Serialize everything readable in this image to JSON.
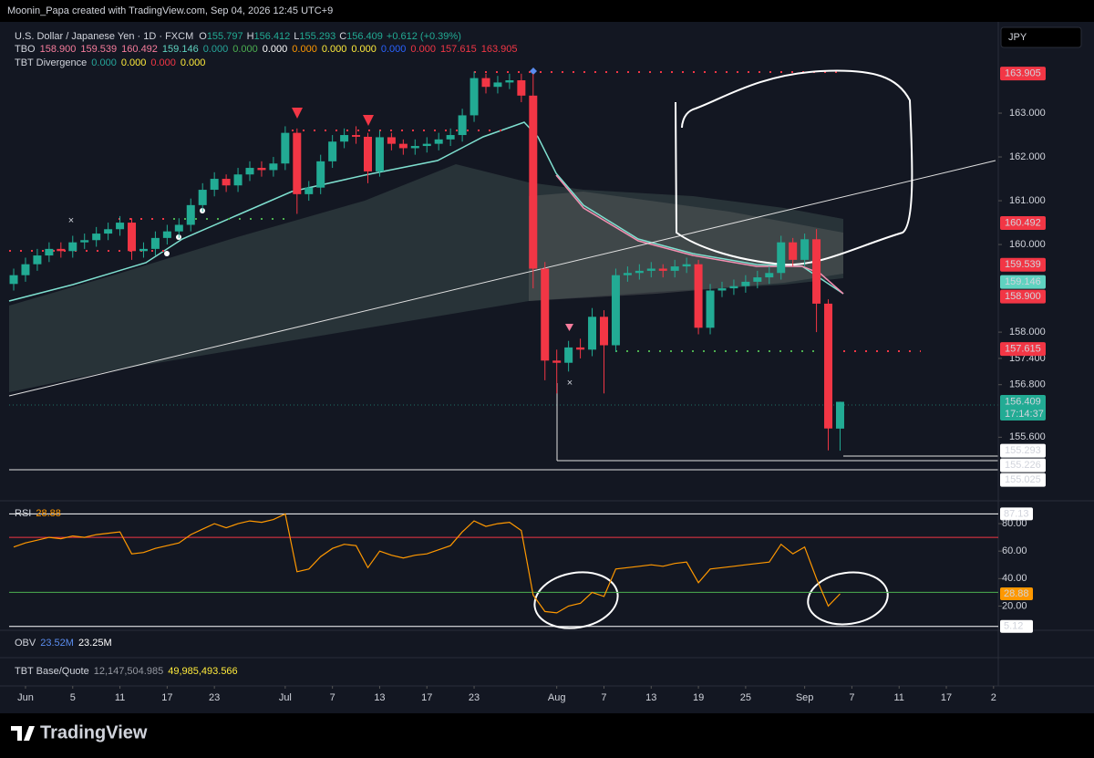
{
  "caption": "Moonin_Papa created with TradingView.com, Sep 04, 2026 12:45 UTC+9",
  "legend": {
    "symbol": "U.S. Dollar / Japanese Yen · 1D · FXCM",
    "ohlc": [
      {
        "key": "O",
        "value": "155.797"
      },
      {
        "key": "H",
        "value": "156.412"
      },
      {
        "key": "L",
        "value": "155.293"
      },
      {
        "key": "C",
        "value": "156.409"
      }
    ],
    "change": "+0.612 (+0.39%)",
    "tbo": {
      "name": "TBO",
      "values": [
        {
          "text": "158.900",
          "color": "#f77c9c"
        },
        {
          "text": "159.539",
          "color": "#f77c9c"
        },
        {
          "text": "160.492",
          "color": "#f77c9c"
        },
        {
          "text": "159.146",
          "color": "#5fd3c0"
        },
        {
          "text": "0.000",
          "color": "#26a69a"
        },
        {
          "text": "0.000",
          "color": "#4caf50"
        },
        {
          "text": "0.000",
          "color": "#ffffff"
        },
        {
          "text": "0.000",
          "color": "#ff9800"
        },
        {
          "text": "0.000",
          "color": "#ffeb3b"
        },
        {
          "text": "0.000",
          "color": "#ffeb3b"
        },
        {
          "text": "0.000",
          "color": "#2962ff"
        },
        {
          "text": "0.000",
          "color": "#f23645"
        },
        {
          "text": "157.615",
          "color": "#f23645"
        },
        {
          "text": "163.905",
          "color": "#f23645"
        }
      ]
    },
    "divergence": {
      "name": "TBT Divergence",
      "values": [
        {
          "text": "0.000",
          "color": "#26a69a"
        },
        {
          "text": "0.000",
          "color": "#ffeb3b"
        },
        {
          "text": "0.000",
          "color": "#f23645"
        },
        {
          "text": "0.000",
          "color": "#ffeb3b"
        }
      ]
    }
  },
  "currency": "JPY",
  "chart_data": [
    {
      "type": "candlestick",
      "up_color": "#22ab94",
      "down_color": "#f23645",
      "xlim": [
        -1.16,
        83.4
      ],
      "xticks": [
        {
          "value": 1,
          "label": "Jun"
        },
        {
          "value": 5,
          "label": "5"
        },
        {
          "value": 9,
          "label": "11"
        },
        {
          "value": 13,
          "label": "17"
        },
        {
          "value": 17,
          "label": "23"
        },
        {
          "value": 23,
          "label": "Jul"
        },
        {
          "value": 27,
          "label": "7"
        },
        {
          "value": 31,
          "label": "13"
        },
        {
          "value": 35,
          "label": "17"
        },
        {
          "value": 39,
          "label": "23"
        },
        {
          "value": 46,
          "label": "Aug"
        },
        {
          "value": 50,
          "label": "7"
        },
        {
          "value": 54,
          "label": "13"
        },
        {
          "value": 58,
          "label": "19"
        },
        {
          "value": 62,
          "label": "25"
        },
        {
          "value": 67,
          "label": "Sep"
        },
        {
          "value": 71,
          "label": "7"
        },
        {
          "value": 75,
          "label": "11"
        },
        {
          "value": 79,
          "label": "17"
        },
        {
          "value": 83,
          "label": "2"
        }
      ],
      "ylim": [
        154.17,
        165.0
      ],
      "yticks": [
        {
          "value": 163,
          "label": "163.000"
        },
        {
          "value": 162,
          "label": "162.000"
        },
        {
          "value": 161,
          "label": "161.000"
        },
        {
          "value": 160,
          "label": "160.000"
        },
        {
          "value": 158,
          "label": "158.000"
        },
        {
          "value": 157.4,
          "label": "157.400"
        },
        {
          "value": 156.8,
          "label": "156.800"
        },
        {
          "value": 155.6,
          "label": "155.600"
        }
      ],
      "open": [
        159.1,
        159.3,
        159.55,
        159.75,
        159.9,
        159.85,
        160.05,
        160.1,
        160.25,
        160.35,
        160.5,
        159.85,
        159.9,
        160.15,
        160.3,
        160.45,
        160.9,
        161.25,
        161.5,
        161.35,
        161.6,
        161.75,
        161.7,
        161.85,
        162.55,
        161.15,
        161.3,
        161.9,
        162.35,
        162.5,
        162.46,
        161.67,
        162.45,
        162.3,
        162.2,
        162.25,
        162.3,
        162.4,
        162.5,
        162.95,
        163.8,
        163.6,
        163.7,
        163.75,
        163.4,
        159.45,
        157.35,
        157.3,
        157.65,
        157.6,
        158.35,
        157.7,
        159.3,
        159.35,
        159.4,
        159.45,
        159.4,
        159.5,
        159.55,
        158.1,
        158.95,
        159.0,
        159.05,
        159.15,
        159.25,
        159.35,
        160.05,
        159.65,
        160.12,
        158.65,
        155.797
      ],
      "high": [
        159.45,
        159.7,
        159.9,
        160.05,
        160.05,
        160.2,
        160.25,
        160.4,
        160.5,
        160.65,
        160.6,
        160.05,
        160.3,
        160.45,
        160.6,
        161.05,
        161.4,
        161.65,
        161.6,
        161.75,
        161.9,
        161.9,
        162.0,
        162.7,
        162.65,
        161.45,
        162.05,
        162.5,
        162.65,
        162.7,
        162.55,
        162.6,
        162.55,
        162.4,
        162.4,
        162.45,
        162.55,
        162.65,
        163.1,
        163.95,
        163.9,
        163.85,
        163.9,
        163.9,
        163.9,
        159.6,
        157.6,
        157.8,
        157.85,
        158.55,
        158.5,
        159.45,
        159.5,
        159.55,
        159.6,
        159.55,
        159.65,
        159.7,
        159.65,
        159.1,
        159.15,
        159.2,
        159.3,
        159.4,
        159.5,
        160.2,
        160.15,
        160.25,
        160.35,
        158.75,
        156.412
      ],
      "low": [
        158.95,
        159.15,
        159.4,
        159.6,
        159.7,
        159.7,
        159.9,
        159.95,
        160.1,
        160.2,
        159.65,
        159.7,
        159.75,
        160.0,
        160.15,
        160.3,
        160.75,
        161.1,
        161.2,
        161.2,
        161.45,
        161.55,
        161.55,
        161.7,
        160.7,
        161.0,
        161.15,
        161.75,
        162.2,
        162.3,
        161.4,
        161.55,
        162.15,
        162.05,
        162.05,
        162.1,
        162.15,
        162.25,
        162.35,
        162.8,
        163.45,
        163.45,
        163.55,
        163.25,
        159.0,
        156.9,
        156.6,
        157.1,
        157.4,
        157.45,
        156.6,
        157.55,
        159.15,
        159.2,
        159.25,
        159.25,
        159.25,
        159.35,
        157.95,
        157.95,
        158.8,
        158.85,
        158.9,
        159.0,
        159.1,
        159.2,
        159.5,
        159.5,
        158.0,
        155.3,
        155.293
      ],
      "close": [
        159.3,
        159.55,
        159.75,
        159.9,
        159.85,
        160.05,
        160.1,
        160.25,
        160.35,
        160.5,
        159.85,
        159.9,
        160.15,
        160.3,
        160.45,
        160.9,
        161.25,
        161.5,
        161.35,
        161.6,
        161.75,
        161.7,
        161.85,
        162.55,
        161.15,
        161.3,
        161.9,
        162.35,
        162.5,
        162.46,
        161.67,
        162.45,
        162.3,
        162.2,
        162.25,
        162.3,
        162.4,
        162.5,
        162.95,
        163.8,
        163.6,
        163.7,
        163.75,
        163.4,
        159.45,
        157.35,
        157.3,
        157.65,
        157.6,
        158.35,
        157.7,
        159.3,
        159.35,
        159.4,
        159.45,
        159.4,
        159.5,
        159.55,
        158.1,
        158.95,
        159.0,
        159.05,
        159.15,
        159.25,
        159.35,
        160.05,
        159.65,
        160.12,
        158.65,
        155.8,
        156.409
      ],
      "price_labels": [
        {
          "value": 163.905,
          "label": "163.905",
          "color": "#f23645"
        },
        {
          "value": 160.492,
          "label": "160.492",
          "color": "#f23645"
        },
        {
          "value": 159.539,
          "label": "159.539",
          "color": "#f23645"
        },
        {
          "value": 159.146,
          "label": "159.146",
          "color": "#5fd3c0"
        },
        {
          "value": 158.9,
          "label": "158.900",
          "color": "#f23645"
        },
        {
          "value": 157.615,
          "label": "157.615",
          "color": "#f23645"
        },
        {
          "value": 156.409,
          "label": "156.409",
          "color": "#22ab94",
          "countdown": "17:14:37"
        },
        {
          "value": 155.293,
          "label": "155.293",
          "color": "#ffffff"
        },
        {
          "value": 155.226,
          "label": "155.226",
          "color": "#ffffff"
        },
        {
          "value": 155.025,
          "label": "155.025",
          "color": "#ffffff"
        }
      ]
    },
    {
      "type": "line",
      "title": "RSI",
      "value_label": "28.88",
      "color": "#ff9800",
      "xlim": [
        -1.16,
        83.4
      ],
      "ylim": [
        3,
        96
      ],
      "yticks": [
        {
          "value": 80,
          "label": "80.00"
        },
        {
          "value": 60,
          "label": "60.00"
        },
        {
          "value": 40,
          "label": "40.00"
        },
        {
          "value": 20,
          "label": "20.00"
        }
      ],
      "levels": [
        {
          "value": 87.13,
          "label": "87.13",
          "color": "#ffffff"
        },
        {
          "value": 70,
          "color": "#f23645"
        },
        {
          "value": 30,
          "color": "#4caf50"
        },
        {
          "value": 5.12,
          "label": "5.12",
          "color": "#ffffff"
        }
      ],
      "values": [
        63,
        66,
        68,
        70,
        69,
        71,
        70,
        72,
        73,
        74,
        58,
        59,
        62,
        64,
        66,
        72,
        76,
        80,
        77,
        80,
        82,
        81,
        83,
        87,
        45,
        47,
        56,
        62,
        65,
        64,
        48,
        60,
        57,
        55,
        57,
        58,
        61,
        64,
        74,
        82,
        78,
        80,
        81,
        75,
        28,
        16,
        15,
        20,
        22,
        30,
        27,
        47,
        48,
        49,
        50,
        49,
        51,
        52,
        37,
        47,
        48,
        49,
        50,
        51,
        52,
        65,
        58,
        63,
        40,
        20,
        28.88
      ],
      "last_label": {
        "value": 28.88,
        "label": "28.88"
      }
    }
  ],
  "obv": {
    "name": "OBV",
    "values": [
      {
        "text": "23.52M",
        "color": "#5b8def"
      },
      {
        "text": "23.25M",
        "color": "#ffffff"
      }
    ]
  },
  "base_quote": {
    "name": "TBT Base/Quote",
    "values": [
      {
        "text": "12,147,504.985",
        "color": "#9598a1"
      },
      {
        "text": "49,985,493.566",
        "color": "#ffeb3b"
      }
    ]
  },
  "brand": "TradingView"
}
